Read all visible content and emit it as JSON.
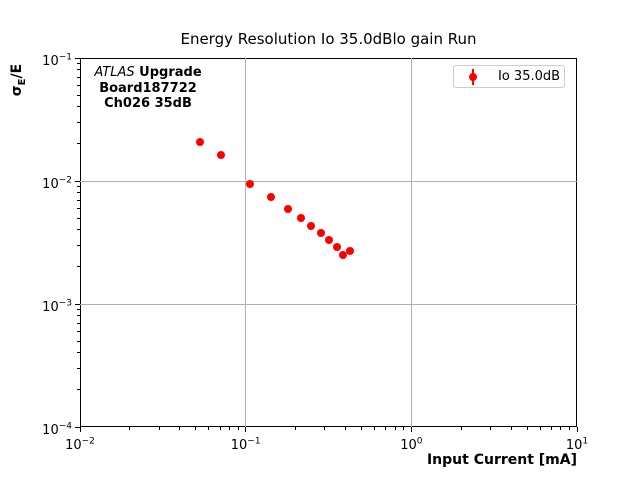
{
  "figure": {
    "ylabel_parts": {
      "sigma": "σ",
      "sub": "E",
      "rest": "/E"
    },
    "annotation": {
      "line1_italic": "ATLAS",
      "line1_bold": " Upgrade",
      "line2": "Board187722",
      "line3": "Ch026 35dB"
    }
  },
  "chart_data": {
    "type": "scatter",
    "title": "Energy Resolution Io 35.0dBlo gain Run",
    "xlabel": "Input Current [mA]",
    "ylabel": "σ_E/E",
    "xscale": "log",
    "yscale": "log",
    "xlim": [
      0.01,
      10
    ],
    "ylim": [
      0.0001,
      0.1
    ],
    "x_tick_exponents": [
      -2,
      -1,
      0,
      1
    ],
    "y_tick_exponents": [
      -1,
      -2,
      -3,
      -4
    ],
    "grid": "major",
    "legend_position": "upper right",
    "annotation_text": "ATLAS Upgrade\nBoard187722\nCh026 35dB",
    "series": [
      {
        "name": "Io 35.0dB",
        "marker": "o",
        "color": "#ff0000",
        "x": [
          0.053,
          0.071,
          0.106,
          0.142,
          0.179,
          0.216,
          0.248,
          0.285,
          0.318,
          0.354,
          0.389,
          0.429
        ],
        "y": [
          0.0209,
          0.0162,
          0.0094,
          0.0074,
          0.0059,
          0.005,
          0.0043,
          0.0038,
          0.0033,
          0.0029,
          0.0025,
          0.0027
        ]
      }
    ],
    "colors": {
      "grid": "#b0b0b0",
      "spine": "#000000",
      "legend_border": "#cccccc",
      "background": "#ffffff"
    }
  }
}
